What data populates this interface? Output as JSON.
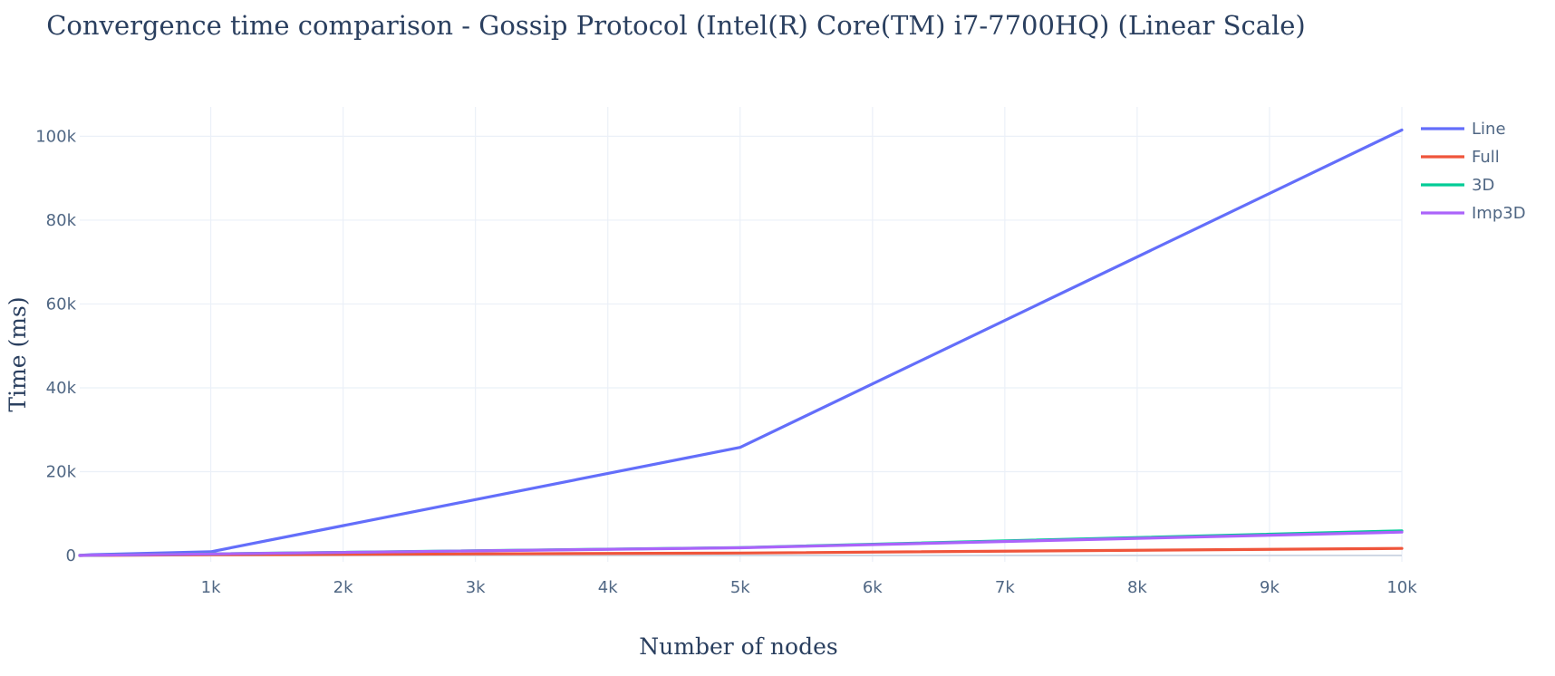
{
  "chart_data": {
    "type": "line",
    "title": "Convergence time comparison - Gossip Protocol (Intel(R) Core(TM) i7-7700HQ) (Linear Scale)",
    "xlabel": "Number of nodes",
    "ylabel": "Time (ms)",
    "xlim": [
      10,
      10000
    ],
    "ylim": [
      -1500,
      107000
    ],
    "x_ticks": [
      1000,
      2000,
      3000,
      4000,
      5000,
      6000,
      7000,
      8000,
      9000,
      10000
    ],
    "x_tick_labels": [
      "1k",
      "2k",
      "3k",
      "4k",
      "5k",
      "6k",
      "7k",
      "8k",
      "9k",
      "10k"
    ],
    "y_ticks": [
      0,
      20000,
      40000,
      60000,
      80000,
      100000
    ],
    "y_tick_labels": [
      "0",
      "20k",
      "40k",
      "60k",
      "80k",
      "100k"
    ],
    "grid": true,
    "legend_position": "top-right",
    "x": [
      10,
      100,
      1000,
      5000,
      10000
    ],
    "series": [
      {
        "name": "Line",
        "color": "#636efa",
        "values": [
          30,
          200,
          900,
          25800,
          101500
        ]
      },
      {
        "name": "Full",
        "color": "#ef553b",
        "values": [
          10,
          40,
          180,
          600,
          1700
        ]
      },
      {
        "name": "3D",
        "color": "#00cc96",
        "values": [
          15,
          80,
          400,
          1900,
          5900
        ]
      },
      {
        "name": "Imp3D",
        "color": "#ab63fa",
        "values": [
          15,
          75,
          380,
          1850,
          5600
        ]
      }
    ]
  }
}
